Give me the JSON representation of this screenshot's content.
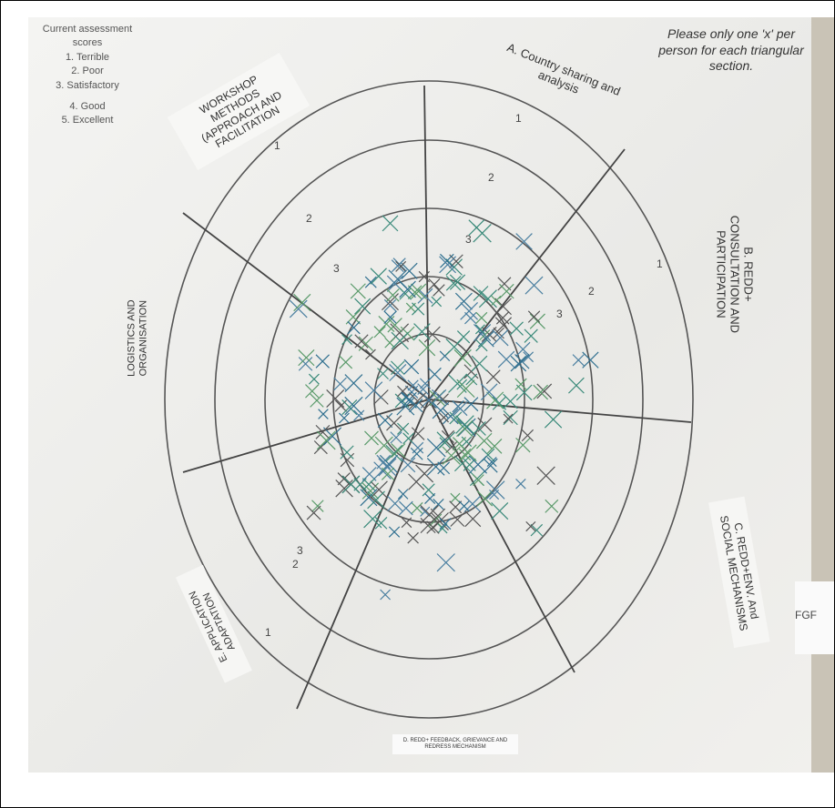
{
  "legend": {
    "title": "Current assessment scores",
    "items": [
      "1. Terrible",
      "2. Poor",
      "3. Satisfactory",
      "4. Good",
      "5. Excellent"
    ]
  },
  "instruction": "Please only one 'x' per person for each triangular section.",
  "sections": [
    "A. Country sharing and analysis",
    "B. REDD+ CONSULTATION AND PARTICIPATION",
    "C. REDD+ENV. And SOCIAL MECHANISMS",
    "D. REDD+ FEEDBACK, GRIEVANCE AND REDRESS MECHANISM",
    "E. APPLICATION ADAPTATION",
    "LOGISTICS AND ORGANISATION",
    "WORKSHOP METHODS (APPROACH AND FACILITATION"
  ],
  "side_sign": "FGF",
  "ring_numbers": [
    "1",
    "2",
    "3",
    "1",
    "2",
    "3",
    "1",
    "2",
    "3",
    "1",
    "2",
    "3"
  ]
}
